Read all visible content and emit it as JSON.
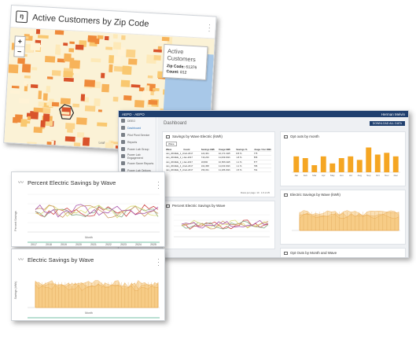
{
  "map_card": {
    "title": "Active Customers by Zip Code",
    "logo_text": "ŋ",
    "zoom_in": "+",
    "zoom_out": "−",
    "tooltip_title": "Active Customers",
    "tooltip_zip_label": "Zip Code:",
    "tooltip_zip_value": "61376",
    "tooltip_count_label": "Count:",
    "tooltip_count_value": "812",
    "attribution": "Leaf"
  },
  "dashboard": {
    "app_name": "AEPO · AEPO",
    "user": "Herman Melvin",
    "title": "Dashboard",
    "download_button": "DOWNLOAD ALL DATA",
    "sidebar": [
      {
        "label": "DEEO",
        "icon": "home-icon"
      },
      {
        "label": "Dashboard",
        "icon": "dashboard-icon"
      },
      {
        "label": "Pilot Pivot Service",
        "icon": "pivot-icon"
      },
      {
        "label": "Reports",
        "icon": "reports-icon"
      },
      {
        "label": "Power Lab Group",
        "icon": "group-icon"
      },
      {
        "label": "Power Lab Engagement",
        "icon": "engagement-icon"
      },
      {
        "label": "Power Saver Reports",
        "icon": "saver-icon"
      },
      {
        "label": "Power Lab Options",
        "icon": "options-icon"
      }
    ],
    "savings_table": {
      "title": "Savings by Wave Electric (kWh)",
      "filter": "Wave",
      "columns": [
        "Wave",
        "Count",
        "Savings kWh",
        "Usage kWh",
        "Savings %",
        "Usage / Cur kWh"
      ],
      "rows": [
        [
          "Jan_2019HE_1_wel",
          "Feb-2017",
          "122,461",
          "10,171 kWh",
          "8.8 %",
          "775"
        ],
        [
          "Jan_2019HE_2_wel",
          "Jan-2017",
          "716,233",
          "11,009 kWh",
          "1.8 %",
          "855"
        ],
        [
          "Jan_2019HE_3_wel",
          "Jan-2017",
          "18,800",
          "10,656 kWh",
          "1.1 %",
          "877"
        ],
        [
          "Jan_2019HE_4_wel",
          "Feb-2017",
          "102,458",
          "11,033 kWh",
          "1.1 %",
          "786"
        ],
        [
          "Jan_2019HE_5_wel",
          "Feb-2017",
          "156,331",
          "11,186 kWh",
          "1.5 %",
          "791"
        ]
      ],
      "pager": "Rows per page:  10  ·  1-5 of 25"
    },
    "opt_outs_title": "Opt outs by month",
    "electric_savings_title": "Electric Savings by Wave (kWh)",
    "pct_savings_title": "Percent Electric Savings by Wave",
    "opt_outs_wave_title": "Opt Outs by Month and Wave"
  },
  "percent_card": {
    "title": "Percent Electric Savings by Wave",
    "ylabel": "Percent Savings",
    "xlabel": "Month",
    "years": [
      "2017",
      "2018",
      "2019",
      "2020",
      "2021",
      "2022",
      "2023",
      "2024",
      "2025"
    ]
  },
  "electric_card": {
    "title": "Electric Savings by Wave",
    "ylabel": "Savings (kWh)",
    "xlabel": "Month"
  },
  "chart_data": [
    {
      "type": "bar",
      "title": "Opt outs by month",
      "categories": [
        "Jan",
        "Feb",
        "Mar",
        "Apr",
        "May",
        "Jun",
        "Jul",
        "Aug",
        "Sep",
        "Oct",
        "Nov",
        "Dec"
      ],
      "values": [
        9,
        8,
        4,
        9,
        5,
        8,
        9,
        7,
        14,
        10,
        11,
        9
      ],
      "color": "#f5a623"
    },
    {
      "type": "line",
      "title": "Percent Electric Savings by Wave",
      "series_colors": [
        "#c44",
        "#8a8",
        "#dd7",
        "#c96",
        "#a5a"
      ]
    },
    {
      "type": "area",
      "title": "Electric Savings by Wave",
      "color": "#f5c77a"
    }
  ]
}
